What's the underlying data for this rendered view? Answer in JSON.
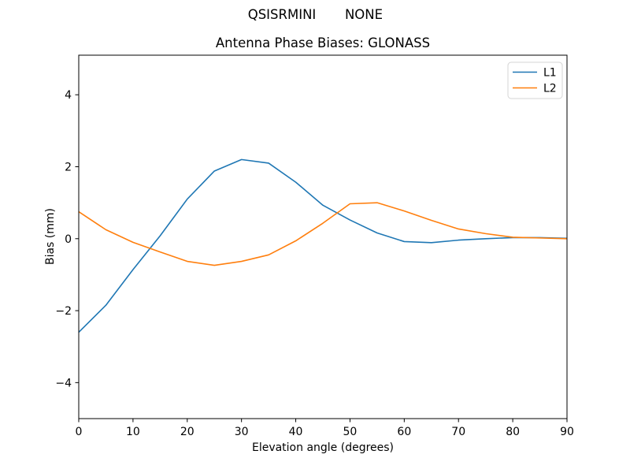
{
  "header": {
    "left_title": "QSISRMINI",
    "right_title": "NONE"
  },
  "chart_data": {
    "type": "line",
    "title": "Antenna Phase Biases: GLONASS",
    "xlabel": "Elevation angle (degrees)",
    "ylabel": "Bias (mm)",
    "xlim": [
      0,
      90
    ],
    "ylim": [
      -5.0,
      5.1
    ],
    "grid": false,
    "legend_position": "upper right",
    "x": [
      0,
      5,
      10,
      15,
      20,
      25,
      30,
      35,
      40,
      45,
      50,
      55,
      60,
      65,
      70,
      75,
      80,
      85,
      90
    ],
    "series": [
      {
        "name": "L1",
        "color": "#1f77b4",
        "values": [
          -2.6,
          -1.85,
          -0.86,
          0.08,
          1.1,
          1.88,
          2.2,
          2.1,
          1.57,
          0.93,
          0.52,
          0.16,
          -0.08,
          -0.11,
          -0.04,
          0.0,
          0.03,
          0.03,
          0.01
        ]
      },
      {
        "name": "L2",
        "color": "#ff7f0e",
        "values": [
          0.75,
          0.25,
          -0.1,
          -0.37,
          -0.63,
          -0.74,
          -0.63,
          -0.45,
          -0.06,
          0.43,
          0.97,
          1.0,
          0.77,
          0.51,
          0.27,
          0.14,
          0.04,
          0.02,
          0.0
        ]
      }
    ],
    "xticks": {
      "values": [
        0,
        10,
        20,
        30,
        40,
        50,
        60,
        70,
        80,
        90
      ],
      "labels": [
        "0",
        "10",
        "20",
        "30",
        "40",
        "50",
        "60",
        "70",
        "80",
        "90"
      ]
    },
    "yticks": {
      "values": [
        -4,
        -2,
        0,
        2,
        4
      ],
      "labels": [
        "−4",
        "−2",
        "0",
        "2",
        "4"
      ]
    }
  },
  "colors": {
    "axis": "#000000",
    "legend_border": "#d4d4d4",
    "background": "#ffffff"
  }
}
